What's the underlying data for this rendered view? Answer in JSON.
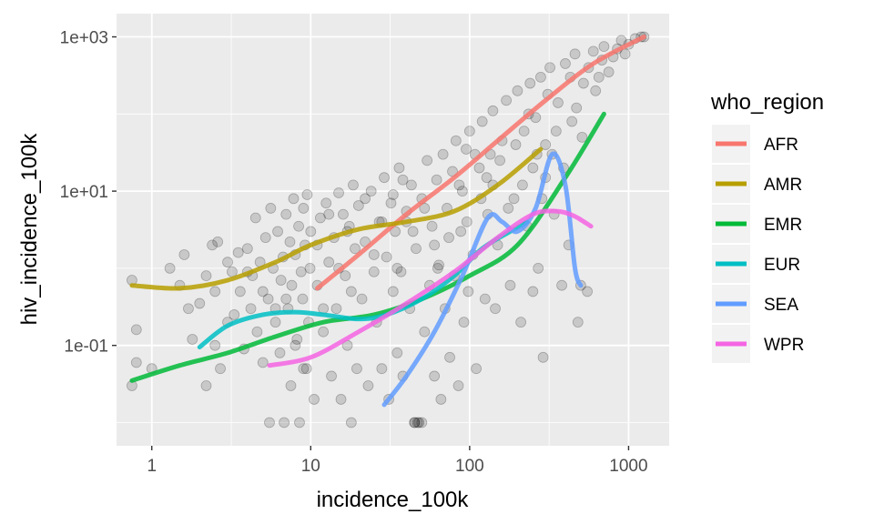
{
  "chart_data": {
    "type": "scatter",
    "xlabel": "incidence_100k",
    "ylabel": "hiv_incidence_100k",
    "x_scale": "log10",
    "y_scale": "log10",
    "xlim": [
      0.6,
      1800
    ],
    "ylim": [
      0.005,
      2000
    ],
    "grid": true,
    "x_ticks": [
      {
        "value": 1,
        "label": "1"
      },
      {
        "value": 10,
        "label": "10"
      },
      {
        "value": 100,
        "label": "100"
      },
      {
        "value": 1000,
        "label": "1000"
      }
    ],
    "y_ticks": [
      {
        "value": 0.1,
        "label": "1e-01"
      },
      {
        "value": 10,
        "label": "1e+01"
      },
      {
        "value": 1000,
        "label": "1e+03"
      }
    ],
    "legend": {
      "title": "who_region",
      "position": "right"
    },
    "points_note": "semi-transparent black points (alpha ~0.15)",
    "points": [
      [
        0.75,
        0.7
      ],
      [
        0.8,
        0.16
      ],
      [
        0.8,
        0.06
      ],
      [
        0.75,
        0.03
      ],
      [
        1.0,
        0.05
      ],
      [
        1.3,
        1.0
      ],
      [
        1.5,
        0.6
      ],
      [
        1.6,
        1.5
      ],
      [
        1.7,
        0.3
      ],
      [
        1.8,
        0.12
      ],
      [
        2.0,
        0.35
      ],
      [
        2.2,
        0.8
      ],
      [
        2.2,
        0.03
      ],
      [
        2.4,
        2.0
      ],
      [
        2.5,
        0.5
      ],
      [
        2.6,
        2.2
      ],
      [
        2.7,
        0.05
      ],
      [
        3.0,
        1.2
      ],
      [
        3.2,
        0.9
      ],
      [
        3.3,
        0.25
      ],
      [
        3.5,
        1.6
      ],
      [
        3.6,
        0.5
      ],
      [
        3.8,
        0.09
      ],
      [
        4.0,
        1.8
      ],
      [
        4.2,
        0.3
      ],
      [
        4.3,
        0.8
      ],
      [
        4.5,
        4.5
      ],
      [
        4.6,
        0.15
      ],
      [
        4.8,
        1.2
      ],
      [
        5.0,
        0.06
      ],
      [
        5.2,
        2.5
      ],
      [
        5.4,
        0.4
      ],
      [
        5.5,
        0.01
      ],
      [
        5.6,
        6.0
      ],
      [
        5.8,
        1.0
      ],
      [
        6.0,
        0.2
      ],
      [
        6.2,
        3.0
      ],
      [
        6.4,
        0.08
      ],
      [
        6.5,
        0.7
      ],
      [
        6.7,
        1.4
      ],
      [
        6.8,
        0.01
      ],
      [
        7.0,
        5.0
      ],
      [
        7.2,
        0.3
      ],
      [
        7.4,
        2.2
      ],
      [
        7.5,
        0.03
      ],
      [
        7.6,
        0.6
      ],
      [
        7.8,
        8.0
      ],
      [
        8.0,
        1.5
      ],
      [
        8.2,
        0.12
      ],
      [
        8.4,
        3.5
      ],
      [
        8.5,
        0.01
      ],
      [
        8.7,
        0.9
      ],
      [
        8.9,
        0.4
      ],
      [
        9.0,
        6.0
      ],
      [
        9.2,
        2.0
      ],
      [
        9.4,
        0.05
      ],
      [
        9.5,
        9.0
      ],
      [
        9.7,
        0.2
      ],
      [
        9.9,
        1.0
      ],
      [
        10.0,
        3.0
      ],
      [
        10.5,
        0.02
      ],
      [
        11.0,
        0.6
      ],
      [
        11.5,
        4.5
      ],
      [
        12.0,
        0.15
      ],
      [
        12.5,
        7.0
      ],
      [
        13.0,
        1.2
      ],
      [
        13.5,
        0.04
      ],
      [
        14.0,
        2.5
      ],
      [
        14.5,
        0.3
      ],
      [
        15.0,
        9.5
      ],
      [
        15.5,
        0.02
      ],
      [
        16.0,
        5.0
      ],
      [
        16.5,
        0.8
      ],
      [
        17.0,
        0.1
      ],
      [
        17.5,
        3.5
      ],
      [
        18.0,
        0.01
      ],
      [
        18.5,
        12.0
      ],
      [
        19.0,
        1.8
      ],
      [
        19.5,
        0.05
      ],
      [
        20.0,
        6.5
      ],
      [
        21.0,
        0.4
      ],
      [
        22.0,
        2.2
      ],
      [
        23.0,
        0.03
      ],
      [
        24.0,
        10.0
      ],
      [
        25.0,
        0.9
      ],
      [
        26.0,
        0.2
      ],
      [
        27.0,
        4.0
      ],
      [
        28.0,
        0.05
      ],
      [
        29.0,
        15.0
      ],
      [
        30.0,
        1.4
      ],
      [
        31.0,
        0.02
      ],
      [
        32.0,
        7.0
      ],
      [
        33.0,
        0.5
      ],
      [
        34.0,
        3.0
      ],
      [
        35.0,
        0.08
      ],
      [
        36.0,
        20.0
      ],
      [
        37.0,
        0.9
      ],
      [
        38.0,
        0.04
      ],
      [
        40.0,
        5.5
      ],
      [
        42.0,
        0.3
      ],
      [
        43.0,
        12.0
      ],
      [
        45.0,
        0.01
      ],
      [
        46.0,
        1.8
      ],
      [
        48.0,
        0.01
      ],
      [
        50.0,
        8.0
      ],
      [
        52.0,
        0.15
      ],
      [
        54.0,
        25.0
      ],
      [
        56.0,
        0.6
      ],
      [
        58.0,
        3.5
      ],
      [
        60.0,
        0.04
      ],
      [
        62.0,
        14.0
      ],
      [
        64.0,
        1.1
      ],
      [
        66.0,
        0.02
      ],
      [
        68.0,
        30.0
      ],
      [
        70.0,
        0.3
      ],
      [
        72.0,
        6.0
      ],
      [
        75.0,
        0.07
      ],
      [
        78.0,
        18.0
      ],
      [
        80.0,
        0.8
      ],
      [
        82.0,
        45.0
      ],
      [
        85.0,
        0.03
      ],
      [
        88.0,
        3.0
      ],
      [
        90.0,
        10.0
      ],
      [
        92.0,
        0.2
      ],
      [
        95.0,
        35.0
      ],
      [
        98.0,
        0.5
      ],
      [
        100.0,
        60.0
      ],
      [
        105.0,
        1.5
      ],
      [
        110.0,
        0.05
      ],
      [
        115.0,
        20.0
      ],
      [
        120.0,
        80.0
      ],
      [
        125.0,
        0.4
      ],
      [
        130.0,
        5.0
      ],
      [
        135.0,
        30.0
      ],
      [
        140.0,
        110.0
      ],
      [
        145.0,
        0.3
      ],
      [
        150.0,
        2.0
      ],
      [
        160.0,
        45.0
      ],
      [
        170.0,
        150.0
      ],
      [
        180.0,
        0.6
      ],
      [
        190.0,
        8.0
      ],
      [
        200.0,
        200.0
      ],
      [
        210.0,
        0.2
      ],
      [
        220.0,
        60.0
      ],
      [
        230.0,
        3.5
      ],
      [
        240.0,
        250.0
      ],
      [
        250.0,
        0.5
      ],
      [
        260.0,
        90.0
      ],
      [
        270.0,
        1.0
      ],
      [
        280.0,
        300.0
      ],
      [
        290.0,
        0.07
      ],
      [
        300.0,
        15.0
      ],
      [
        320.0,
        400.0
      ],
      [
        340.0,
        5.0
      ],
      [
        360.0,
        140.0
      ],
      [
        380.0,
        0.6
      ],
      [
        400.0,
        450.0
      ],
      [
        420.0,
        2.0
      ],
      [
        440.0,
        80.0
      ],
      [
        460.0,
        600.0
      ],
      [
        480.0,
        0.2
      ],
      [
        500.0,
        0.6
      ],
      [
        520.0,
        250.0
      ],
      [
        550.0,
        0.5
      ],
      [
        600.0,
        650.0
      ],
      [
        650.0,
        300.0
      ],
      [
        700.0,
        750.0
      ],
      [
        800.0,
        550.0
      ],
      [
        900.0,
        900.0
      ],
      [
        1000.0,
        800.0
      ],
      [
        1100.0,
        950.0
      ],
      [
        1200.0,
        1000.0
      ],
      [
        1250.0,
        1000.0
      ],
      [
        45.0,
        0.01
      ],
      [
        47.0,
        0.01
      ],
      [
        50.0,
        0.01
      ],
      [
        300.0,
        40.0
      ],
      [
        330.0,
        30.0
      ],
      [
        250.0,
        20.0
      ],
      [
        140.0,
        12.0
      ],
      [
        60.0,
        2.0
      ],
      [
        40.0,
        4.0
      ],
      [
        35.0,
        1.0
      ],
      [
        25.0,
        1.5
      ],
      [
        18.0,
        0.5
      ],
      [
        12.0,
        0.3
      ],
      [
        8.0,
        0.1
      ],
      [
        6.0,
        0.3
      ],
      [
        5.0,
        0.5
      ],
      [
        4.0,
        0.9
      ],
      [
        3.0,
        0.2
      ],
      [
        2.5,
        0.1
      ],
      [
        7.0,
        0.4
      ],
      [
        9.0,
        0.05
      ],
      [
        11.0,
        2.0
      ],
      [
        13.0,
        5.0
      ],
      [
        15.0,
        1.0
      ],
      [
        17.0,
        3.0
      ],
      [
        22.0,
        8.0
      ],
      [
        28.0,
        4.0
      ],
      [
        33.0,
        9.0
      ],
      [
        38.0,
        14.0
      ],
      [
        44.0,
        3.0
      ],
      [
        52.0,
        6.0
      ],
      [
        63.0,
        1.0
      ],
      [
        74.0,
        2.5
      ],
      [
        86.0,
        12.0
      ],
      [
        96.0,
        4.0
      ],
      [
        108.0,
        30.0
      ],
      [
        118.0,
        8.0
      ],
      [
        128.0,
        15.0
      ],
      [
        155.0,
        25.0
      ],
      [
        175.0,
        6.0
      ],
      [
        195.0,
        40.0
      ],
      [
        215.0,
        12.0
      ],
      [
        235.0,
        100.0
      ],
      [
        265.0,
        30.0
      ],
      [
        285.0,
        8.0
      ],
      [
        310.0,
        180.0
      ],
      [
        350.0,
        60.0
      ],
      [
        390.0,
        20.0
      ],
      [
        430.0,
        300.0
      ],
      [
        470.0,
        120.0
      ],
      [
        510.0,
        50.0
      ],
      [
        560.0,
        400.0
      ],
      [
        620.0,
        200.0
      ],
      [
        680.0,
        500.0
      ],
      [
        750.0,
        350.0
      ],
      [
        850.0,
        700.0
      ],
      [
        950.0,
        600.0
      ]
    ],
    "series": [
      {
        "name": "AFR",
        "color": "#F8766D",
        "x": [
          11,
          20,
          40,
          80,
          150,
          300,
          600,
          1250
        ],
        "y": [
          0.55,
          1.5,
          5,
          15,
          45,
          150,
          450,
          1000
        ]
      },
      {
        "name": "AMR",
        "color": "#B79F00",
        "x": [
          0.75,
          1.5,
          3,
          6,
          10,
          20,
          40,
          80,
          150,
          280
        ],
        "y": [
          0.6,
          0.55,
          0.7,
          1.2,
          2.0,
          3.2,
          4.0,
          5.5,
          12,
          35
        ]
      },
      {
        "name": "EMR",
        "color": "#00BA38",
        "x": [
          0.75,
          1.5,
          3,
          6,
          12,
          25,
          50,
          100,
          200,
          400,
          700
        ],
        "y": [
          0.035,
          0.055,
          0.08,
          0.13,
          0.2,
          0.25,
          0.4,
          0.8,
          2.0,
          15,
          100
        ]
      },
      {
        "name": "EUR",
        "color": "#00BFC4",
        "x": [
          2,
          3,
          5,
          8,
          12,
          20,
          30,
          50,
          80,
          120,
          180,
          230
        ],
        "y": [
          0.095,
          0.18,
          0.25,
          0.27,
          0.25,
          0.22,
          0.25,
          0.4,
          0.8,
          1.8,
          3.0,
          4.0
        ]
      },
      {
        "name": "SEA",
        "color": "#619CFF",
        "x": [
          29,
          40,
          60,
          90,
          130,
          160,
          200,
          260,
          330,
          400,
          460,
          500
        ],
        "y": [
          0.017,
          0.04,
          0.15,
          0.8,
          4.5,
          4.0,
          3.0,
          6.0,
          30,
          12,
          1.0,
          0.6
        ]
      },
      {
        "name": "WPR",
        "color": "#F564E3",
        "x": [
          5.5,
          10,
          20,
          40,
          80,
          150,
          250,
          350,
          450,
          580
        ],
        "y": [
          0.055,
          0.07,
          0.15,
          0.35,
          0.9,
          2.5,
          5.0,
          5.5,
          4.8,
          3.5
        ]
      }
    ]
  }
}
